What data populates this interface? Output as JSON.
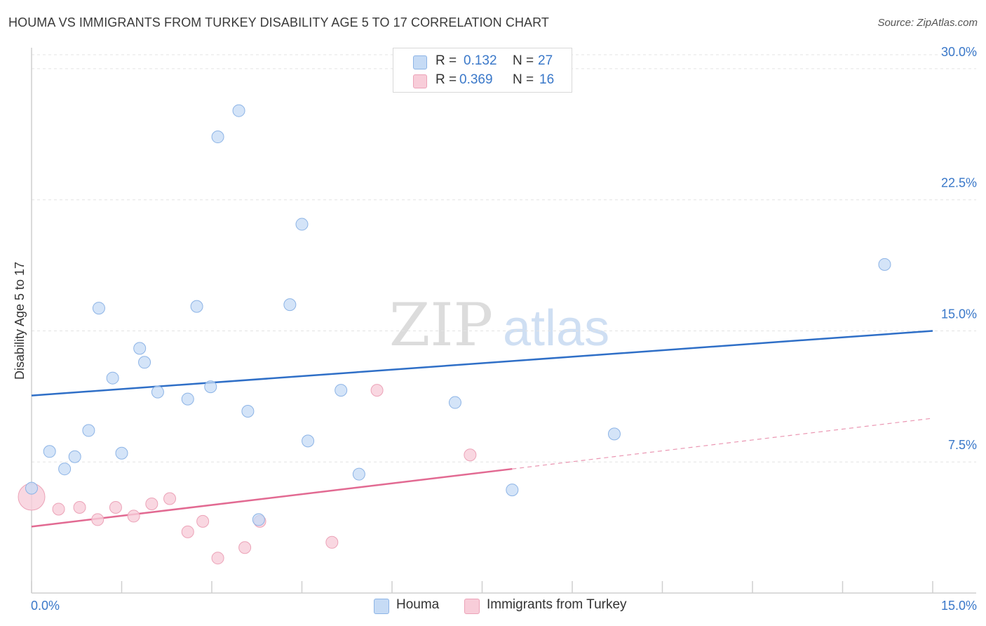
{
  "header": {
    "title": "HOUMA VS IMMIGRANTS FROM TURKEY DISABILITY AGE 5 TO 17 CORRELATION CHART",
    "source": "Source: ZipAtlas.com"
  },
  "legend": {
    "r_label": "R = ",
    "n_label": "N = ",
    "series": [
      {
        "name": "Houma",
        "r": "0.132",
        "n": "27"
      },
      {
        "name": "Immigrants from Turkey",
        "r": "0.369",
        "n": "16"
      }
    ]
  },
  "watermark": {
    "zip": "ZIP",
    "atlas": "atlas"
  },
  "colors": {
    "houma_fill": "#c6dbf5",
    "houma_stroke": "#8db4e6",
    "houma_line": "#2f6fc7",
    "turkey_fill": "#f8cdd9",
    "turkey_stroke": "#eca3b8",
    "turkey_line": "#e26a92",
    "value_text": "#3a78c9",
    "grid": "#e3e3e3"
  },
  "chart_data": {
    "type": "scatter",
    "title": "HOUMA VS IMMIGRANTS FROM TURKEY DISABILITY AGE 5 TO 17 CORRELATION CHART",
    "xlabel": "",
    "ylabel": "Disability Age 5 to 17",
    "xlim": [
      0,
      15
    ],
    "ylim": [
      0,
      30.8
    ],
    "x_tick_labels": [
      "0.0%",
      "15.0%"
    ],
    "y_ticks": [
      7.5,
      15.0,
      22.5,
      30.0
    ],
    "y_tick_labels": [
      "7.5%",
      "15.0%",
      "22.5%",
      "30.0%"
    ],
    "grid": true,
    "series": [
      {
        "name": "Houma",
        "points": [
          [
            0.0,
            6.0
          ],
          [
            0.3,
            8.1
          ],
          [
            0.55,
            7.1
          ],
          [
            0.72,
            7.8
          ],
          [
            0.95,
            9.3
          ],
          [
            1.12,
            16.3
          ],
          [
            1.35,
            12.3
          ],
          [
            1.5,
            8.0
          ],
          [
            1.8,
            14.0
          ],
          [
            1.88,
            13.2
          ],
          [
            2.1,
            11.5
          ],
          [
            2.6,
            11.1
          ],
          [
            2.75,
            16.4
          ],
          [
            2.98,
            11.8
          ],
          [
            3.1,
            26.1
          ],
          [
            3.45,
            27.6
          ],
          [
            3.6,
            10.4
          ],
          [
            3.78,
            4.2
          ],
          [
            4.3,
            16.5
          ],
          [
            4.6,
            8.7
          ],
          [
            4.5,
            21.1
          ],
          [
            5.15,
            11.6
          ],
          [
            5.45,
            6.8
          ],
          [
            7.05,
            10.9
          ],
          [
            8.0,
            5.9
          ],
          [
            9.7,
            9.1
          ],
          [
            14.2,
            18.8
          ]
        ],
        "trend": {
          "x": [
            0,
            15
          ],
          "y": [
            11.3,
            15.0
          ],
          "style": "solid"
        }
      },
      {
        "name": "Immigrants from Turkey",
        "points": [
          [
            0.0,
            5.5,
            "large"
          ],
          [
            0.45,
            4.8
          ],
          [
            0.8,
            4.9
          ],
          [
            1.1,
            4.2
          ],
          [
            1.4,
            4.9
          ],
          [
            1.7,
            4.4
          ],
          [
            2.0,
            5.1
          ],
          [
            2.3,
            5.4
          ],
          [
            2.6,
            3.5
          ],
          [
            2.85,
            4.1
          ],
          [
            3.1,
            2.0
          ],
          [
            3.55,
            2.6
          ],
          [
            3.8,
            4.1
          ],
          [
            5.0,
            2.9
          ],
          [
            5.75,
            11.6
          ],
          [
            7.3,
            7.9
          ]
        ],
        "trend": {
          "x": [
            0,
            8.0
          ],
          "y": [
            3.8,
            7.1
          ],
          "style": "solid"
        },
        "trend_extension": {
          "x": [
            8.0,
            15
          ],
          "y": [
            7.1,
            10.0
          ],
          "style": "dashed"
        }
      }
    ]
  }
}
